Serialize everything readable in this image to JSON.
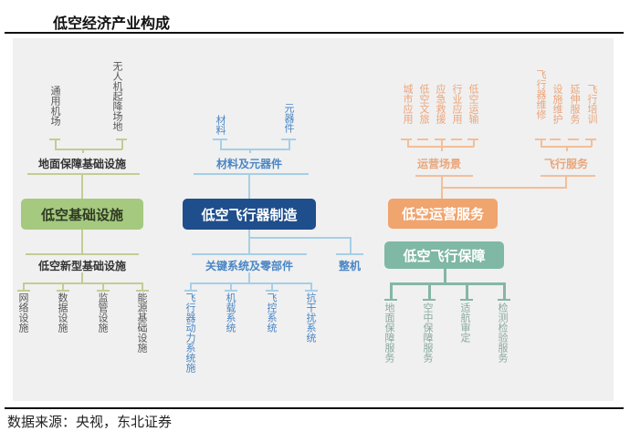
{
  "title": "低空经济产业构成",
  "footer": "数据来源：央视，东北证券",
  "colors": {
    "infra": "#a5c97f",
    "manufacturing": "#1f4e8c",
    "operations": "#f0a46e",
    "support": "#7fb8a4",
    "infra_lines": "#c3cc95",
    "manufacturing_lines": "#a6cfe6",
    "operations_lines": "#f3be98",
    "support_lines": "#86b6a5"
  },
  "infrastructure": {
    "label": "低空基础设施",
    "ground": {
      "label": "地面保障基础设施",
      "items": [
        "通用机场",
        "无人机起降场地"
      ]
    },
    "new_type": {
      "label": "低空新型基础设施",
      "items": [
        "网络设施",
        "数据设施",
        "监管设施",
        "能源基础设施"
      ]
    }
  },
  "manufacturing": {
    "label": "低空飞行器制造",
    "materials": {
      "label": "材料及元器件",
      "items": [
        "材料",
        "元器件"
      ]
    },
    "key_systems": {
      "label": "关键系统及零部件",
      "items": [
        "飞行器动力系统施",
        "机载系统",
        "飞控系统",
        "抗干扰系统"
      ]
    },
    "whole_machine": "整机"
  },
  "operations": {
    "label": "低空运营服务",
    "scenarios": {
      "label": "运营场景",
      "items": [
        "城市应用",
        "低空文旅",
        "应急救援",
        "行业应用",
        "低空运输"
      ]
    },
    "flight_services": {
      "label": "飞行服务",
      "items": [
        "飞行器维修",
        "设施维护",
        "延伸服务",
        "飞行培训"
      ]
    }
  },
  "support": {
    "label": "低空飞行保障",
    "items": [
      "地面保障服务",
      "空中保障服务",
      "适航审定",
      "检测检验服务"
    ]
  }
}
